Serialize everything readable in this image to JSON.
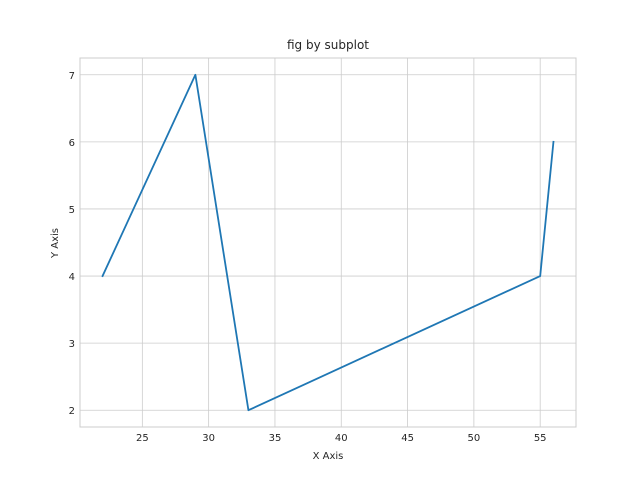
{
  "chart_data": {
    "type": "line",
    "title": "fig by subplot",
    "xlabel": "X Axis",
    "ylabel": "Y Axis",
    "xlim": [
      20.3,
      57.7
    ],
    "ylim": [
      1.75,
      7.25
    ],
    "xticks": [
      25,
      30,
      35,
      40,
      45,
      50,
      55
    ],
    "yticks": [
      2,
      3,
      4,
      5,
      6,
      7
    ],
    "grid": true,
    "series": [
      {
        "x": [
          22,
          29,
          33,
          55,
          56
        ],
        "y": [
          4,
          7,
          2,
          4,
          6
        ],
        "color": "#1f77b4"
      }
    ]
  }
}
